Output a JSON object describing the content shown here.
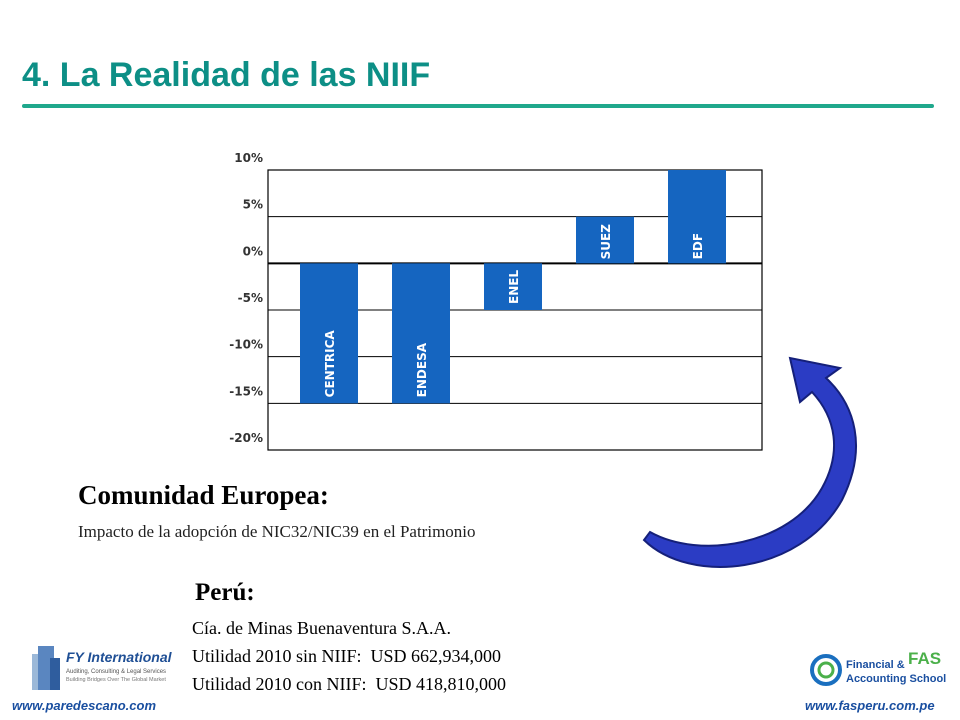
{
  "slide": {
    "title": "4. La Realidad de las NIIF"
  },
  "chart_data": {
    "type": "bar",
    "categories": [
      "CENTRICA",
      "ENDESA",
      "ENEL",
      "SUEZ",
      "EDF"
    ],
    "values": [
      -15,
      -15,
      -5,
      5,
      10
    ],
    "ylim": [
      -20,
      10
    ],
    "yticks": [
      "10%",
      "5%",
      "0%",
      "-5%",
      "-10%",
      "-15%",
      "-20%"
    ],
    "grid": true,
    "bar_color": "#1565c0"
  },
  "europe": {
    "heading": "Comunidad Europea:",
    "subtitle": "Impacto de la adopción de NIC32/NIC39 en el Patrimonio"
  },
  "peru": {
    "heading": "Perú:",
    "lines": [
      "Cía. de Minas Buenaventura S.A.A.",
      "Utilidad 2010 sin NIIF:  USD 662,934,000",
      "Utilidad 2010 con NIIF:  USD 418,810,000"
    ]
  },
  "footer": {
    "left_url": "www.paredescano.com",
    "right_url": "www.fasperu.com.pe"
  },
  "logos": {
    "fy": {
      "name": "FY International",
      "tagline": "Auditing, Consulting & Legal Services",
      "tagline2": "Building Bridges Over The Global Market"
    },
    "fas": {
      "line1": "Financial &",
      "line2": "Accounting School",
      "mark": "FAS"
    }
  },
  "colors": {
    "title": "#0d8f86",
    "rule": "#1fa88c",
    "arrow": "#2b3cc4"
  }
}
